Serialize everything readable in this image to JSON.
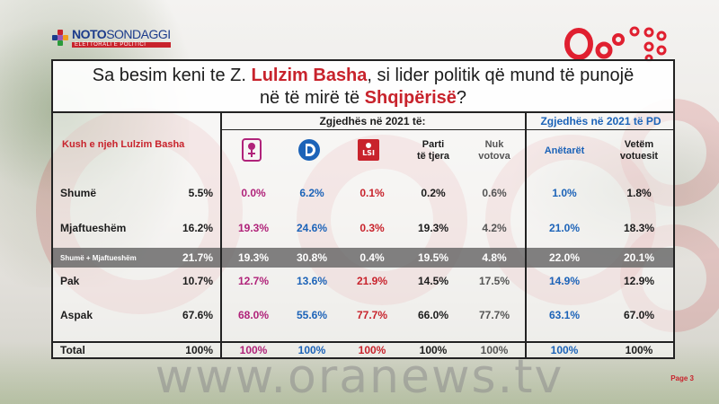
{
  "header": {
    "noto_brand_bold": "NOTO",
    "noto_brand_thin": "SONDAGGI",
    "noto_tagline": "ELETTORALI E POLITICI"
  },
  "title": {
    "part1": "Sa besim keni te Z. ",
    "name": "Lulzim Basha",
    "part2": ", si lider politik që mund të punojë",
    "line2_a": "në të mirë të ",
    "country": "Shqipërisë",
    "line2_b": "?"
  },
  "table": {
    "row_header_label": "Kush e njeh Lulzim Basha",
    "group1_label": "Zgjedhës në 2021 të:",
    "group2_label": "Zgjedhës në 2021 të PD",
    "columns": [
      {
        "key": "ps",
        "label": "",
        "icon": "ps-rose-logo",
        "color": "#b0237a"
      },
      {
        "key": "pd",
        "label": "",
        "icon": "pd-logo",
        "color": "#1c63b8"
      },
      {
        "key": "lsi",
        "label": "",
        "icon": "lsi-logo",
        "color": "#c8232c"
      },
      {
        "key": "other",
        "label": "Parti\ntë tjera",
        "color": "#1c1c1c"
      },
      {
        "key": "novote",
        "label": "Nuk\nvotova",
        "color": "#555555"
      },
      {
        "key": "members",
        "label": "Anëtarët",
        "color": "#1c63b8"
      },
      {
        "key": "voters",
        "label": "Vetëm\nvotuesit",
        "color": "#1c1c1c"
      }
    ],
    "rows": [
      {
        "label": "Shumë",
        "total": "5.5%",
        "values": [
          "0.0%",
          "6.2%",
          "0.1%",
          "0.2%",
          "0.6%",
          "1.0%",
          "1.8%"
        ]
      },
      {
        "label": "Mjaftueshëm",
        "total": "16.2%",
        "values": [
          "19.3%",
          "24.6%",
          "0.3%",
          "19.3%",
          "4.2%",
          "21.0%",
          "18.3%"
        ]
      },
      {
        "label": "Shumë + Mjaftueshëm",
        "total": "21.7%",
        "values": [
          "19.3%",
          "30.8%",
          "0.4%",
          "19.5%",
          "4.8%",
          "22.0%",
          "20.1%"
        ],
        "highlight": true
      },
      {
        "label": "Pak",
        "total": "10.7%",
        "values": [
          "12.7%",
          "13.6%",
          "21.9%",
          "14.5%",
          "17.5%",
          "14.9%",
          "12.9%"
        ]
      },
      {
        "label": "Aspak",
        "total": "67.6%",
        "values": [
          "68.0%",
          "55.6%",
          "77.7%",
          "66.0%",
          "77.7%",
          "63.1%",
          "67.0%"
        ]
      },
      {
        "label": "Total",
        "total": "100%",
        "values": [
          "100%",
          "100%",
          "100%",
          "100%",
          "100%",
          "100%",
          "100%"
        ]
      }
    ]
  },
  "watermark": "www.oranews.tv",
  "page_label": "Page 3",
  "colors": {
    "accent_red": "#c8232c",
    "brand_blue": "#1b3b8b",
    "pd_blue": "#1c63b8",
    "ps_magenta": "#b0237a"
  }
}
